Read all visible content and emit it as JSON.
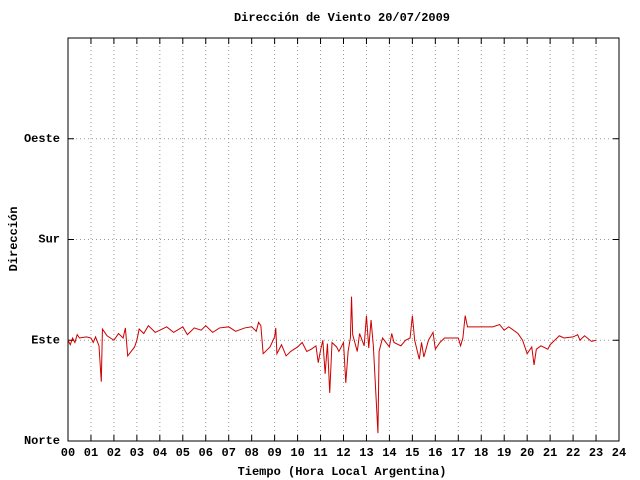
{
  "chart_data": {
    "type": "line",
    "title": "Dirección de Viento 20/07/2009",
    "xlabel": "Tiempo (Hora Local Argentina)",
    "ylabel": "Dirección",
    "color": "#cc0000",
    "grid": true,
    "xlim": [
      0,
      24
    ],
    "ylim": [
      0,
      360
    ],
    "xticks": [
      {
        "value": 0,
        "label": "00"
      },
      {
        "value": 1,
        "label": "01"
      },
      {
        "value": 2,
        "label": "02"
      },
      {
        "value": 3,
        "label": "03"
      },
      {
        "value": 4,
        "label": "04"
      },
      {
        "value": 5,
        "label": "05"
      },
      {
        "value": 6,
        "label": "06"
      },
      {
        "value": 7,
        "label": "07"
      },
      {
        "value": 8,
        "label": "08"
      },
      {
        "value": 9,
        "label": "09"
      },
      10,
      11,
      12,
      13,
      14,
      15,
      16,
      17,
      18,
      19,
      20,
      21,
      22,
      23,
      24
    ],
    "yticks": [
      {
        "value": 0,
        "label": "Norte"
      },
      {
        "value": 90,
        "label": "Este"
      },
      {
        "value": 180,
        "label": "Sur"
      },
      {
        "value": 270,
        "label": "Oeste"
      }
    ],
    "x": [
      0.0,
      0.1,
      0.2,
      0.3,
      0.4,
      0.5,
      0.8,
      1.0,
      1.1,
      1.2,
      1.35,
      1.45,
      1.5,
      1.7,
      2.0,
      2.2,
      2.4,
      2.5,
      2.6,
      2.9,
      3.0,
      3.1,
      3.3,
      3.5,
      3.8,
      4.0,
      4.3,
      4.6,
      5.0,
      5.2,
      5.5,
      5.8,
      6.0,
      6.3,
      6.6,
      7.0,
      7.3,
      7.7,
      8.0,
      8.2,
      8.3,
      8.4,
      8.5,
      8.8,
      9.0,
      9.05,
      9.1,
      9.3,
      9.5,
      9.7,
      10.0,
      10.2,
      10.4,
      10.6,
      10.8,
      10.9,
      11.0,
      11.1,
      11.2,
      11.3,
      11.4,
      11.5,
      11.7,
      11.8,
      12.0,
      12.1,
      12.2,
      12.3,
      12.35,
      12.4,
      12.6,
      12.7,
      12.9,
      13.0,
      13.1,
      13.2,
      13.3,
      13.5,
      13.55,
      13.7,
      14.0,
      14.1,
      14.2,
      14.5,
      14.7,
      14.9,
      15.0,
      15.1,
      15.3,
      15.4,
      15.5,
      15.7,
      15.9,
      16.0,
      16.2,
      16.4,
      17.0,
      17.1,
      17.2,
      17.3,
      17.4,
      18.0,
      18.5,
      18.8,
      19.0,
      19.2,
      19.6,
      19.8,
      20.0,
      20.2,
      20.3,
      20.4,
      20.6,
      20.9,
      21.0,
      21.2,
      21.4,
      21.6,
      22.0,
      22.2,
      22.3,
      22.5,
      22.8,
      23.0
    ],
    "values": [
      90,
      86,
      92,
      88,
      95,
      92,
      93,
      92,
      88,
      93,
      85,
      53,
      100,
      94,
      90,
      96,
      92,
      101,
      76,
      84,
      90,
      100,
      96,
      103,
      97,
      99,
      102,
      97,
      102,
      95,
      101,
      99,
      103,
      97,
      101,
      102,
      98,
      101,
      102,
      98,
      106,
      103,
      78,
      84,
      93,
      101,
      78,
      86,
      76,
      80,
      84,
      88,
      80,
      82,
      85,
      70,
      81,
      90,
      60,
      87,
      43,
      88,
      84,
      80,
      88,
      52,
      80,
      92,
      129,
      95,
      80,
      96,
      85,
      112,
      83,
      108,
      85,
      7,
      80,
      92,
      84,
      96,
      88,
      85,
      90,
      92,
      112,
      90,
      73,
      88,
      75,
      90,
      97,
      82,
      88,
      92,
      92,
      85,
      92,
      112,
      102,
      102,
      102,
      104,
      99,
      102,
      96,
      90,
      78,
      84,
      68,
      82,
      85,
      82,
      86,
      90,
      94,
      92,
      93,
      95,
      90,
      94,
      89,
      90
    ]
  }
}
